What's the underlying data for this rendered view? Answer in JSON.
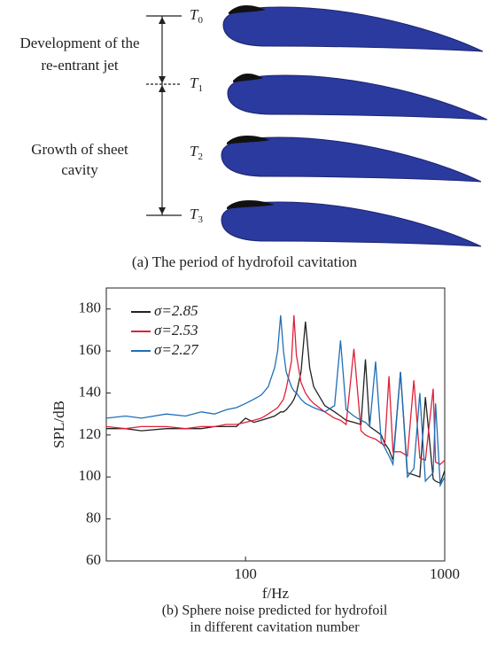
{
  "diagram": {
    "stages": [
      {
        "symbol": "T",
        "index": "0"
      },
      {
        "symbol": "T",
        "index": "1"
      },
      {
        "symbol": "T",
        "index": "2"
      },
      {
        "symbol": "T",
        "index": "3"
      }
    ],
    "phases": [
      {
        "lines": [
          "Development of the",
          "re-entrant jet"
        ]
      },
      {
        "lines": [
          "Growth of sheet",
          "cavity"
        ]
      }
    ],
    "caption": "(a) The period of hydrofoil cavitation"
  },
  "chart_data": {
    "type": "line",
    "x_label": "f/Hz",
    "y_label": "SPL/dB",
    "caption_lines": [
      "(b) Sphere noise predicted for hydrofoil",
      "in different cavitation number"
    ],
    "log_x": true,
    "legend": "upper left",
    "xlim": [
      20,
      1000
    ],
    "ylim": [
      60,
      190
    ],
    "xticks": [
      100,
      1000
    ],
    "yticks": [
      60,
      80,
      100,
      120,
      140,
      160,
      180
    ],
    "x": [
      20,
      25,
      30,
      40,
      50,
      60,
      70,
      80,
      90,
      100,
      110,
      120,
      130,
      140,
      145,
      150,
      155,
      160,
      170,
      175,
      180,
      190,
      200,
      210,
      220,
      250,
      280,
      300,
      320,
      350,
      380,
      400,
      420,
      450,
      480,
      500,
      525,
      550,
      600,
      650,
      700,
      750,
      800,
      875,
      900,
      950,
      1000
    ],
    "series": [
      {
        "name": "σ=2.85",
        "color": "#222222",
        "values": [
          123,
          123,
          122,
          123,
          123,
          123,
          124,
          124,
          124,
          128,
          126,
          127,
          128,
          129,
          130,
          131,
          131,
          132,
          135,
          137,
          140,
          150,
          174,
          152,
          143,
          134,
          131,
          129,
          127,
          126,
          125,
          156,
          124,
          122,
          120,
          116,
          113,
          108,
          150,
          102,
          101,
          100,
          138,
          99,
          98,
          97,
          103
        ]
      },
      {
        "name": "σ=2.53",
        "color": "#e0203a",
        "values": [
          124,
          123,
          124,
          124,
          123,
          124,
          124,
          125,
          125,
          126,
          127,
          128,
          130,
          132,
          133,
          135,
          137,
          142,
          155,
          177,
          158,
          145,
          140,
          137,
          135,
          131,
          128,
          127,
          125,
          161,
          122,
          120,
          119,
          118,
          116,
          115,
          148,
          112,
          112,
          110,
          146,
          109,
          108,
          142,
          107,
          106,
          108
        ]
      },
      {
        "name": "σ=2.27",
        "color": "#1f6fb8",
        "values": [
          128,
          129,
          128,
          130,
          129,
          131,
          130,
          132,
          133,
          135,
          137,
          139,
          143,
          152,
          160,
          177,
          160,
          150,
          143,
          141,
          140,
          137,
          135,
          134,
          133,
          131,
          134,
          165,
          132,
          129,
          127,
          126,
          124,
          155,
          117,
          114,
          110,
          106,
          150,
          100,
          104,
          140,
          98,
          102,
          135,
          96,
          100
        ]
      }
    ]
  }
}
